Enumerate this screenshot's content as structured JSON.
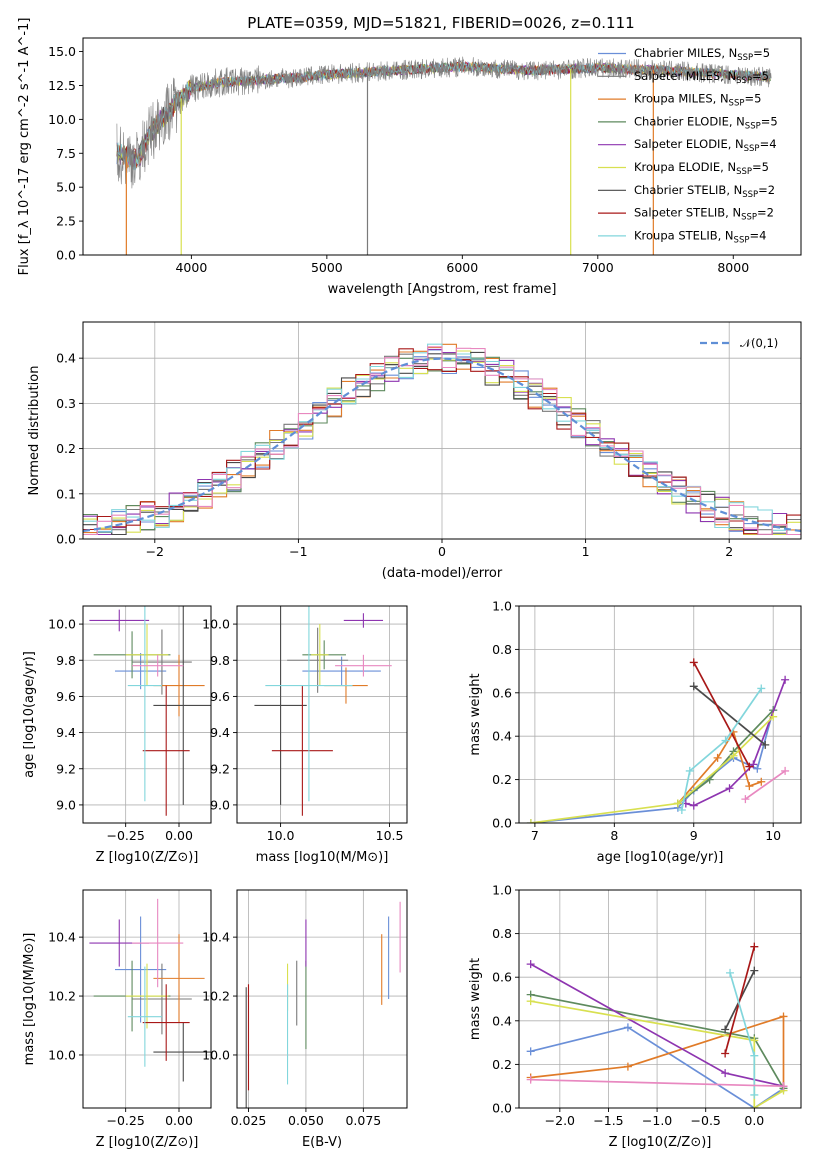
{
  "title": "PLATE=0359, MJD=51821, FIBERID=0026, z=0.111",
  "model_colors": [
    "#6a8fd8",
    "#7a7a7a",
    "#e07b28",
    "#5e8a5e",
    "#8e35b0",
    "#d8e050",
    "#4a4a4a",
    "#a81818",
    "#82d6dc",
    "#e888c0"
  ],
  "legend": [
    {
      "label": "Chabrier MILES, N_SSP=5",
      "color": "#6a8fd8"
    },
    {
      "label": "Salpeter MILES, N_SSP=5",
      "color": "#7a7a7a"
    },
    {
      "label": "Kroupa MILES, N_SSP=5",
      "color": "#e07b28"
    },
    {
      "label": "Chabrier ELODIE, N_SSP=5",
      "color": "#5e8a5e"
    },
    {
      "label": "Salpeter ELODIE, N_SSP=4",
      "color": "#8e35b0"
    },
    {
      "label": "Kroupa ELODIE, N_SSP=5",
      "color": "#d8e050"
    },
    {
      "label": "Chabrier STELIB, N_SSP=2",
      "color": "#4a4a4a"
    },
    {
      "label": "Salpeter STELIB, N_SSP=2",
      "color": "#a81818"
    },
    {
      "label": "Kroupa STELIB, N_SSP=4",
      "color": "#82d6dc"
    }
  ],
  "chart_data": [
    {
      "type": "line",
      "id": "spectrum",
      "xlabel": "wavelength [Angstrom, rest frame]",
      "ylabel": "Flux [f_λ 10^-17 erg cm^-2 s^-1 A^-1]",
      "xlim": [
        3200,
        8500
      ],
      "ylim": [
        0,
        16
      ],
      "xticks": [
        4000,
        5000,
        6000,
        7000,
        8000
      ],
      "yticks": [
        0.0,
        2.5,
        5.0,
        7.5,
        10.0,
        12.5,
        15.0
      ],
      "ytick_labels": [
        "0.0",
        "2.5",
        "5.0",
        "7.5",
        "10.0",
        "12.5",
        "15.0"
      ],
      "spectrum_continuum": [
        [
          3450,
          7.5
        ],
        [
          3600,
          7.0
        ],
        [
          3700,
          9.0
        ],
        [
          3800,
          10.3
        ],
        [
          3900,
          11.3
        ],
        [
          4000,
          12.3
        ],
        [
          4200,
          12.7
        ],
        [
          4500,
          12.9
        ],
        [
          4800,
          13.1
        ],
        [
          5000,
          13.3
        ],
        [
          5500,
          13.6
        ],
        [
          6000,
          13.9
        ],
        [
          6500,
          13.6
        ],
        [
          7000,
          13.8
        ],
        [
          7500,
          13.6
        ],
        [
          8000,
          13.3
        ],
        [
          8280,
          13.1
        ]
      ],
      "dropouts": [
        [
          3520,
          "#e07b28"
        ],
        [
          3925,
          "#d8e050"
        ],
        [
          5300,
          "#7a7a7a"
        ],
        [
          6800,
          "#d8e050"
        ],
        [
          7410,
          "#e07b28"
        ]
      ]
    },
    {
      "type": "histogram",
      "id": "residuals",
      "xlabel": "(data-model)/error",
      "ylabel": "Normed distribution",
      "xlim": [
        -2.5,
        2.5
      ],
      "ylim": [
        0,
        0.48
      ],
      "xticks": [
        -2,
        -1,
        0,
        1,
        2
      ],
      "xtick_labels": [
        "−2",
        "−1",
        "0",
        "1",
        "2"
      ],
      "yticks": [
        0.0,
        0.1,
        0.2,
        0.3,
        0.4
      ],
      "ytick_labels": [
        "0.0",
        "0.1",
        "0.2",
        "0.3",
        "0.4"
      ],
      "bin_width": 0.1,
      "legend_label": "𝒩(0,1)"
    },
    {
      "type": "scatter",
      "id": "age_vs_Z",
      "xlabel": "Z [log10(Z/Z⊙)]",
      "ylabel": "age  [log10(age/yr)]",
      "xlim": [
        -0.45,
        0.15
      ],
      "ylim": [
        8.9,
        10.1
      ],
      "xticks": [
        -0.25,
        0.0
      ],
      "xtick_labels": [
        "−0.25",
        "0.00"
      ],
      "yticks": [
        9.0,
        9.2,
        9.4,
        9.6,
        9.8,
        10.0
      ],
      "ytick_labels": [
        "9.0",
        "9.2",
        "9.4",
        "9.6",
        "9.8",
        "10.0"
      ],
      "points": [
        {
          "x": -0.18,
          "xerr": 0.12,
          "y": 9.74,
          "yerr": 0.1,
          "c": "#6a8fd8"
        },
        {
          "x": -0.08,
          "xerr": 0.14,
          "y": 9.79,
          "yerr": 0.18,
          "c": "#7a7a7a"
        },
        {
          "x": 0.0,
          "xerr": 0.12,
          "y": 9.66,
          "yerr": 0.17,
          "c": "#e07b28"
        },
        {
          "x": -0.22,
          "xerr": 0.18,
          "y": 9.83,
          "yerr": 0.13,
          "c": "#5e8a5e"
        },
        {
          "x": -0.28,
          "xerr": 0.14,
          "y": 10.02,
          "yerr": 0.06,
          "c": "#8e35b0"
        },
        {
          "x": -0.15,
          "xerr": 0.1,
          "y": 9.83,
          "yerr": 0.17,
          "c": "#d8e050"
        },
        {
          "x": 0.02,
          "xerr": 0.14,
          "y": 9.55,
          "yerr": 0.55,
          "c": "#4a4a4a"
        },
        {
          "x": -0.06,
          "xerr": 0.11,
          "y": 9.3,
          "yerr": 0.36,
          "c": "#a81818"
        },
        {
          "x": -0.16,
          "xerr": 0.08,
          "y": 9.66,
          "yerr": 0.64,
          "c": "#82d6dc"
        },
        {
          "x": -0.1,
          "xerr": 0.12,
          "y": 9.77,
          "yerr": 0.06,
          "c": "#e888c0"
        }
      ]
    },
    {
      "type": "scatter",
      "id": "age_vs_mass",
      "xlabel": "mass [log10(M/M⊙)]",
      "ylabel": "",
      "xlim": [
        9.8,
        10.58
      ],
      "ylim": [
        8.9,
        10.1
      ],
      "xticks": [
        10.0,
        10.5
      ],
      "xtick_labels": [
        "10.0",
        "10.5"
      ],
      "yticks": [
        9.0,
        9.2,
        9.4,
        9.6,
        9.8,
        10.0
      ],
      "ytick_labels": [
        "9.0",
        "9.2",
        "9.4",
        "9.6",
        "9.8",
        "10.0"
      ],
      "points": [
        {
          "x": 10.28,
          "xerr": 0.18,
          "y": 9.74,
          "yerr": 0.08,
          "c": "#6a8fd8"
        },
        {
          "x": 10.17,
          "xerr": 0.14,
          "y": 9.8,
          "yerr": 0.18,
          "c": "#7a7a7a"
        },
        {
          "x": 10.3,
          "xerr": 0.1,
          "y": 9.66,
          "yerr": 0.1,
          "c": "#e07b28"
        },
        {
          "x": 10.2,
          "xerr": 0.1,
          "y": 9.83,
          "yerr": 0.08,
          "c": "#5e8a5e"
        },
        {
          "x": 10.38,
          "xerr": 0.09,
          "y": 10.02,
          "yerr": 0.04,
          "c": "#8e35b0"
        },
        {
          "x": 10.18,
          "xerr": 0.04,
          "y": 9.83,
          "yerr": 0.17,
          "c": "#d8e050"
        },
        {
          "x": 10.0,
          "xerr": 0.12,
          "y": 9.55,
          "yerr": 0.55,
          "c": "#4a4a4a"
        },
        {
          "x": 10.1,
          "xerr": 0.14,
          "y": 9.3,
          "yerr": 0.36,
          "c": "#a81818"
        },
        {
          "x": 10.13,
          "xerr": 0.2,
          "y": 9.66,
          "yerr": 0.64,
          "c": "#82d6dc"
        },
        {
          "x": 10.38,
          "xerr": 0.13,
          "y": 9.77,
          "yerr": 0.06,
          "c": "#e888c0"
        }
      ]
    },
    {
      "type": "line",
      "id": "weight_vs_age",
      "xlabel": "age  [log10(age/yr)]",
      "ylabel": "mass weight",
      "xlim": [
        6.8,
        10.35
      ],
      "ylim": [
        0,
        1.0
      ],
      "xticks": [
        7,
        8,
        9,
        10
      ],
      "xtick_labels": [
        "7",
        "8",
        "9",
        "10"
      ],
      "yticks": [
        0.0,
        0.2,
        0.4,
        0.6,
        0.8,
        1.0
      ],
      "ytick_labels": [
        "0.0",
        "0.2",
        "0.4",
        "0.6",
        "0.8",
        "1.0"
      ],
      "series": [
        {
          "c": "#6a8fd8",
          "pts": [
            [
              6.95,
              0.0
            ],
            [
              8.8,
              0.07
            ],
            [
              9.0,
              0.15
            ],
            [
              9.5,
              0.3
            ],
            [
              9.8,
              0.25
            ],
            [
              10.0,
              0.52
            ]
          ]
        },
        {
          "c": "#e07b28",
          "pts": [
            [
              8.8,
              0.09
            ],
            [
              9.3,
              0.3
            ],
            [
              9.5,
              0.42
            ],
            [
              9.7,
              0.17
            ],
            [
              9.85,
              0.19
            ]
          ]
        },
        {
          "c": "#5e8a5e",
          "pts": [
            [
              8.8,
              0.09
            ],
            [
              9.2,
              0.2
            ],
            [
              9.5,
              0.33
            ],
            [
              10.0,
              0.52
            ]
          ]
        },
        {
          "c": "#8e35b0",
          "pts": [
            [
              8.9,
              0.09
            ],
            [
              9.0,
              0.08
            ],
            [
              9.45,
              0.16
            ],
            [
              9.75,
              0.27
            ],
            [
              10.15,
              0.66
            ]
          ]
        },
        {
          "c": "#d8e050",
          "pts": [
            [
              6.95,
              0.0
            ],
            [
              8.8,
              0.09
            ],
            [
              9.5,
              0.31
            ],
            [
              10.0,
              0.49
            ]
          ]
        },
        {
          "c": "#4a4a4a",
          "pts": [
            [
              9.0,
              0.63
            ],
            [
              9.9,
              0.36
            ]
          ]
        },
        {
          "c": "#a81818",
          "pts": [
            [
              9.0,
              0.74
            ],
            [
              9.7,
              0.26
            ]
          ]
        },
        {
          "c": "#82d6dc",
          "pts": [
            [
              8.85,
              0.06
            ],
            [
              8.95,
              0.24
            ],
            [
              9.4,
              0.38
            ],
            [
              9.85,
              0.62
            ]
          ]
        },
        {
          "c": "#e888c0",
          "pts": [
            [
              9.65,
              0.11
            ],
            [
              10.15,
              0.24
            ]
          ]
        }
      ]
    },
    {
      "type": "scatter",
      "id": "mass_vs_Z",
      "xlabel": "Z [log10(Z/Z⊙)]",
      "ylabel": "mass [log10(M/M⊙)]",
      "xlim": [
        -0.45,
        0.15
      ],
      "ylim": [
        9.82,
        10.56
      ],
      "xticks": [
        -0.25,
        0.0
      ],
      "xtick_labels": [
        "−0.25",
        "0.00"
      ],
      "yticks": [
        10.0,
        10.2,
        10.4
      ],
      "ytick_labels": [
        "10.0",
        "10.2",
        "10.4"
      ],
      "points": [
        {
          "x": -0.18,
          "xerr": 0.12,
          "y": 10.29,
          "yerr": 0.18,
          "c": "#6a8fd8"
        },
        {
          "x": -0.08,
          "xerr": 0.14,
          "y": 10.19,
          "yerr": 0.12,
          "c": "#7a7a7a"
        },
        {
          "x": 0.0,
          "xerr": 0.12,
          "y": 10.26,
          "yerr": 0.15,
          "c": "#e07b28"
        },
        {
          "x": -0.22,
          "xerr": 0.18,
          "y": 10.2,
          "yerr": 0.12,
          "c": "#5e8a5e"
        },
        {
          "x": -0.28,
          "xerr": 0.14,
          "y": 10.38,
          "yerr": 0.08,
          "c": "#8e35b0"
        },
        {
          "x": -0.15,
          "xerr": 0.1,
          "y": 10.2,
          "yerr": 0.11,
          "c": "#d8e050"
        },
        {
          "x": 0.02,
          "xerr": 0.14,
          "y": 10.01,
          "yerr": 0.1,
          "c": "#4a4a4a"
        },
        {
          "x": -0.06,
          "xerr": 0.11,
          "y": 10.11,
          "yerr": 0.13,
          "c": "#a81818"
        },
        {
          "x": -0.16,
          "xerr": 0.08,
          "y": 10.13,
          "yerr": 0.17,
          "c": "#82d6dc"
        },
        {
          "x": -0.1,
          "xerr": 0.12,
          "y": 10.38,
          "yerr": 0.15,
          "c": "#e888c0"
        }
      ]
    },
    {
      "type": "scatter",
      "id": "mass_vs_ebv",
      "xlabel": "E(B-V)",
      "ylabel": "",
      "xlim": [
        0.02,
        0.094
      ],
      "ylim": [
        9.82,
        10.56
      ],
      "xticks": [
        0.025,
        0.05,
        0.075
      ],
      "xtick_labels": [
        "0.025",
        "0.050",
        "0.075"
      ],
      "yticks": [
        10.0,
        10.2,
        10.4
      ],
      "ytick_labels": [
        "10.0",
        "10.2",
        "10.4"
      ],
      "points": [
        {
          "x": 0.086,
          "y": 10.33,
          "yerr": 0.14,
          "c": "#6a8fd8"
        },
        {
          "x": 0.046,
          "y": 10.21,
          "yerr": 0.11,
          "c": "#7a7a7a"
        },
        {
          "x": 0.083,
          "y": 10.29,
          "yerr": 0.12,
          "c": "#e07b28"
        },
        {
          "x": 0.05,
          "y": 10.17,
          "yerr": 0.15,
          "c": "#5e8a5e"
        },
        {
          "x": 0.05,
          "y": 10.38,
          "yerr": 0.08,
          "c": "#8e35b0"
        },
        {
          "x": 0.042,
          "y": 10.23,
          "yerr": 0.08,
          "c": "#d8e050"
        },
        {
          "x": 0.024,
          "y": 10.02,
          "yerr": 0.21,
          "c": "#4a4a4a"
        },
        {
          "x": 0.025,
          "y": 10.06,
          "yerr": 0.18,
          "c": "#a81818"
        },
        {
          "x": 0.042,
          "y": 10.07,
          "yerr": 0.17,
          "c": "#82d6dc"
        },
        {
          "x": 0.091,
          "y": 10.4,
          "yerr": 0.12,
          "c": "#e888c0"
        }
      ]
    },
    {
      "type": "line",
      "id": "weight_vs_Z",
      "xlabel": "Z [log10(Z/Z⊙)]",
      "ylabel": "mass weight",
      "xlim": [
        -2.42,
        0.48
      ],
      "ylim": [
        0,
        1.0
      ],
      "xticks": [
        -2.0,
        -1.5,
        -1.0,
        -0.5,
        0.0
      ],
      "xtick_labels": [
        "−2.0",
        "−1.5",
        "−1.0",
        "−0.5",
        "0.0"
      ],
      "yticks": [
        0.0,
        0.2,
        0.4,
        0.6,
        0.8,
        1.0
      ],
      "ytick_labels": [
        "0.0",
        "0.2",
        "0.4",
        "0.6",
        "0.8",
        "1.0"
      ],
      "series": [
        {
          "c": "#6a8fd8",
          "pts": [
            [
              -2.3,
              0.26
            ],
            [
              -1.3,
              0.37
            ],
            [
              0.0,
              0.0
            ],
            [
              0.3,
              0.09
            ]
          ]
        },
        {
          "c": "#e07b28",
          "pts": [
            [
              -2.3,
              0.14
            ],
            [
              -1.3,
              0.19
            ],
            [
              0.3,
              0.42
            ],
            [
              0.3,
              0.1
            ]
          ]
        },
        {
          "c": "#5e8a5e",
          "pts": [
            [
              -2.3,
              0.52
            ],
            [
              0.0,
              0.32
            ],
            [
              0.3,
              0.09
            ]
          ]
        },
        {
          "c": "#8e35b0",
          "pts": [
            [
              -2.3,
              0.66
            ],
            [
              -0.3,
              0.16
            ],
            [
              0.3,
              0.1
            ]
          ]
        },
        {
          "c": "#d8e050",
          "pts": [
            [
              -2.3,
              0.49
            ],
            [
              0.0,
              0.31
            ],
            [
              0.0,
              0.0
            ],
            [
              0.3,
              0.08
            ]
          ]
        },
        {
          "c": "#4a4a4a",
          "pts": [
            [
              -0.3,
              0.36
            ],
            [
              0.0,
              0.63
            ]
          ]
        },
        {
          "c": "#a81818",
          "pts": [
            [
              -0.3,
              0.25
            ],
            [
              0.0,
              0.74
            ]
          ]
        },
        {
          "c": "#82d6dc",
          "pts": [
            [
              -0.25,
              0.62
            ],
            [
              0.0,
              0.24
            ],
            [
              0.0,
              0.06
            ]
          ]
        },
        {
          "c": "#e888c0",
          "pts": [
            [
              -2.3,
              0.13
            ],
            [
              0.3,
              0.1
            ]
          ]
        }
      ]
    }
  ]
}
